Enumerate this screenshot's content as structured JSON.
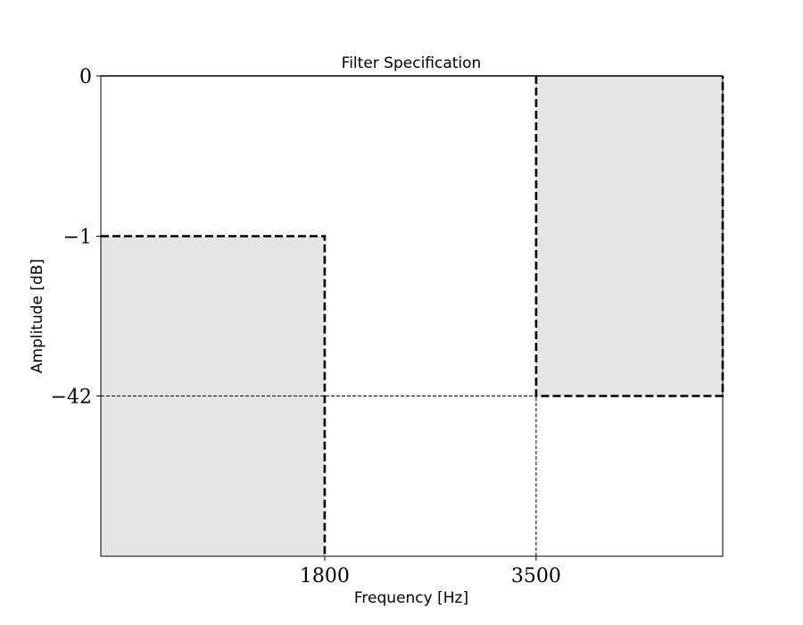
{
  "chart_data": {
    "type": "area",
    "title": "Filter Specification",
    "xlabel": "Frequency [Hz]",
    "ylabel": "Amplitude [dB]",
    "xlim": [
      0,
      5000
    ],
    "ylim": [
      "bottom",
      "0"
    ],
    "y_scale": "categorical",
    "y_levels": [
      "bottom",
      "-42",
      "-1",
      "0"
    ],
    "x_ticks": [
      {
        "value": 1800,
        "label": "1800"
      },
      {
        "value": 3500,
        "label": "3500"
      }
    ],
    "y_ticks": [
      {
        "value": "0",
        "label": "0"
      },
      {
        "value": "-1",
        "label": "−1"
      },
      {
        "value": "-42",
        "label": "−42"
      }
    ],
    "regions": [
      {
        "name": "passband-forbidden",
        "x": [
          0,
          1800
        ],
        "y": [
          "bottom",
          "-1"
        ],
        "fill": "#e5e5e5"
      },
      {
        "name": "stopband-forbidden",
        "x": [
          3500,
          5000
        ],
        "y": [
          "-42",
          "0"
        ],
        "fill": "#e5e5e5"
      }
    ],
    "guide_lines": [
      {
        "orientation": "horizontal",
        "value": "-42",
        "x": [
          0,
          3500
        ]
      },
      {
        "orientation": "vertical",
        "value": 3500,
        "y": [
          "bottom",
          "-42"
        ]
      }
    ],
    "grid": false,
    "legend": "none"
  }
}
